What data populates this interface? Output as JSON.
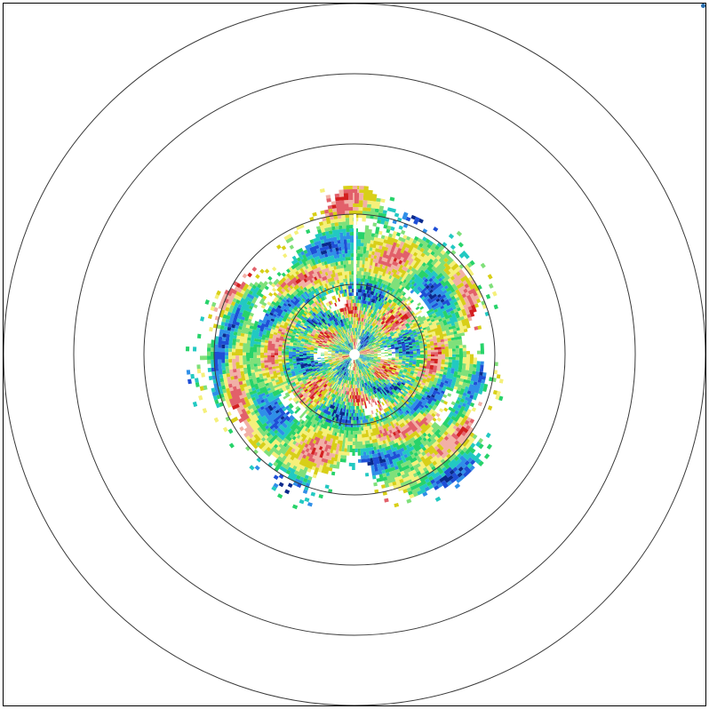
{
  "radar": {
    "product": "doppler-velocity-ppi",
    "range_rings_count": 5,
    "ring_color": "#3a3a3a",
    "frame_color": "#000000",
    "background": "#ffffff",
    "corner_marker_color": "#2a6fb0",
    "color_palette": [
      "#0a2a8c",
      "#1f4fd6",
      "#2f8fe8",
      "#22c9c2",
      "#27d36a",
      "#7fe07a",
      "#f5f07a",
      "#d8cf18",
      "#f2b0a6",
      "#e2606a",
      "#d42020",
      "#ffffff"
    ]
  }
}
